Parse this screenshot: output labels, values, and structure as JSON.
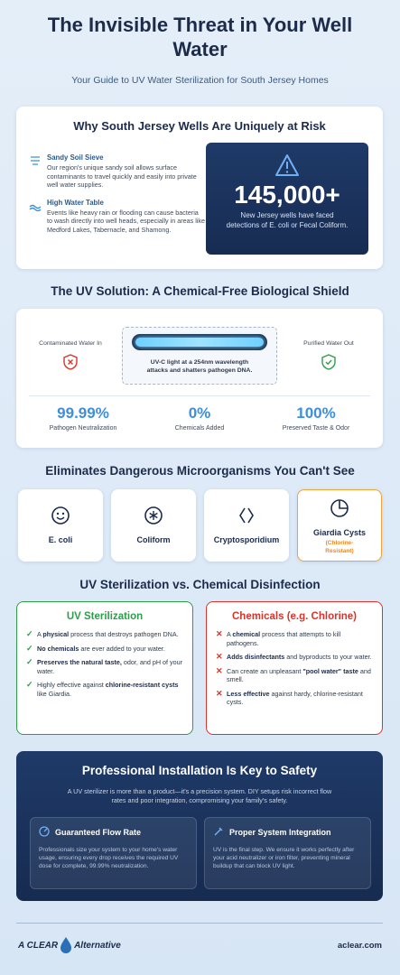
{
  "header": {
    "title": "The Invisible Threat in Your Well Water",
    "subtitle": "Your Guide to UV Water Sterilization for South Jersey Homes"
  },
  "risk": {
    "title": "Why South Jersey Wells Are Uniquely at Risk",
    "items": [
      {
        "title": "Sandy Soil Sieve",
        "text": "Our region's unique sandy soil allows surface contaminants to travel quickly and easily into private well water supplies."
      },
      {
        "title": "High Water Table",
        "text": "Events like heavy rain or flooding can cause bacteria to wash directly into well heads, especially in areas like Medford Lakes, Tabernacle, and Shamong."
      }
    ],
    "stat": {
      "value": "145,000+",
      "text": "New Jersey wells have faced detections of E. coli or Fecal Coliform."
    }
  },
  "uv": {
    "title": "The UV Solution: A Chemical-Free Biological Shield",
    "input": "Contaminated Water In",
    "output": "Purified Water Out",
    "caption": "UV-C light at a 254nm wavelength attacks and shatters pathogen DNA.",
    "stats": [
      {
        "value": "99.99%",
        "label": "Pathogen Neutralization"
      },
      {
        "value": "0%",
        "label": "Chemicals Added"
      },
      {
        "value": "100%",
        "label": "Preserved Taste & Odor"
      }
    ]
  },
  "microbes": {
    "title": "Eliminates Dangerous Microorganisms You Can't See",
    "items": [
      {
        "name": "E. coli"
      },
      {
        "name": "Coliform"
      },
      {
        "name": "Cryptosporidium"
      },
      {
        "name": "Giardia Cysts",
        "note": "(Chlorine-Resistant)"
      }
    ]
  },
  "comparison": {
    "title": "UV Sterilization vs. Chemical Disinfection",
    "columns": [
      {
        "title": "UV Sterilization",
        "color": "#2e9e4a",
        "items": [
          [
            {
              "text": "A "
            },
            {
              "text": "physical",
              "bold": true
            },
            {
              "text": " process that destroys pathogen DNA."
            }
          ],
          [
            {
              "text": "No chemicals",
              "bold": true
            },
            {
              "text": " are ever added to your water."
            }
          ],
          [
            {
              "text": "Preserves the natural taste,",
              "bold": true
            },
            {
              "text": " odor, and pH of your water."
            }
          ],
          [
            {
              "text": "Highly effective against "
            },
            {
              "text": "chlorine-resistant cysts",
              "bold": true
            },
            {
              "text": " like Giardia."
            }
          ]
        ]
      },
      {
        "title": "Chemicals (e.g. Chlorine)",
        "color": "#d9342b",
        "items": [
          [
            {
              "text": "A "
            },
            {
              "text": "chemical",
              "bold": true
            },
            {
              "text": " process that attempts to kill pathogens."
            }
          ],
          [
            {
              "text": "Adds disinfectants",
              "bold": true
            },
            {
              "text": " and byproducts to your water."
            }
          ],
          [
            {
              "text": "Can create an unpleasant "
            },
            {
              "text": "\"pool water\" taste",
              "bold": true
            },
            {
              "text": " and smell."
            }
          ],
          [
            {
              "text": "Less effective",
              "bold": true
            },
            {
              "text": " against hardy, chlorine-resistant cysts."
            }
          ]
        ]
      }
    ]
  },
  "install": {
    "title": "Professional Installation Is Key to Safety",
    "intro": "A UV sterilizer is more than a product—it's a precision system. DIY setups risk incorrect flow rates and poor integration, compromising your family's safety.",
    "cards": [
      {
        "title": "Guaranteed Flow Rate",
        "text": "Professionals size your system to your home's water usage, ensuring every drop receives the required UV dose for complete, 99.99% neutralization."
      },
      {
        "title": "Proper System Integration",
        "text": "UV is the final step. We ensure it works perfectly after your acid neutralizer or iron filter, preventing mineral buildup that can block UV light."
      }
    ]
  },
  "footer": {
    "logo_top": "A CLEAR",
    "logo_bottom": "Alternative",
    "site": "aclear.com"
  }
}
